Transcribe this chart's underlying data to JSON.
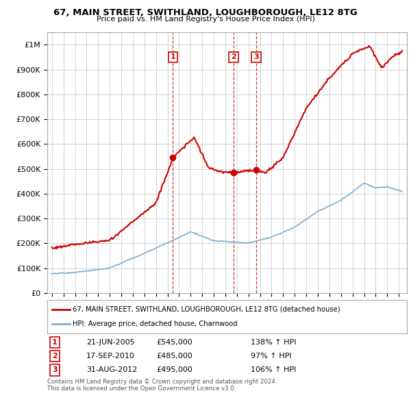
{
  "title": "67, MAIN STREET, SWITHLAND, LOUGHBOROUGH, LE12 8TG",
  "subtitle": "Price paid vs. HM Land Registry's House Price Index (HPI)",
  "legend_line1": "67, MAIN STREET, SWITHLAND, LOUGHBOROUGH, LE12 8TG (detached house)",
  "legend_line2": "HPI: Average price, detached house, Charnwood",
  "footer1": "Contains HM Land Registry data © Crown copyright and database right 2024.",
  "footer2": "This data is licensed under the Open Government Licence v3.0.",
  "transactions": [
    {
      "num": 1,
      "date": "21-JUN-2005",
      "price": "£545,000",
      "hpi": "138% ↑ HPI",
      "year": 2005.47
    },
    {
      "num": 2,
      "date": "17-SEP-2010",
      "price": "£485,000",
      "hpi": "97% ↑ HPI",
      "year": 2010.71
    },
    {
      "num": 3,
      "date": "31-AUG-2012",
      "price": "£495,000",
      "hpi": "106% ↑ HPI",
      "year": 2012.67
    }
  ],
  "transaction_prices": [
    545000,
    485000,
    495000
  ],
  "red_line_color": "#cc0000",
  "blue_line_color": "#7aadce",
  "grid_color": "#cccccc",
  "background_color": "#ffffff",
  "ylim": [
    0,
    1050000
  ],
  "yticks": [
    0,
    100000,
    200000,
    300000,
    400000,
    500000,
    600000,
    700000,
    800000,
    900000,
    1000000
  ],
  "ytick_labels": [
    "£0",
    "£100K",
    "£200K",
    "£300K",
    "£400K",
    "£500K",
    "£600K",
    "£700K",
    "£800K",
    "£900K",
    "£1M"
  ]
}
